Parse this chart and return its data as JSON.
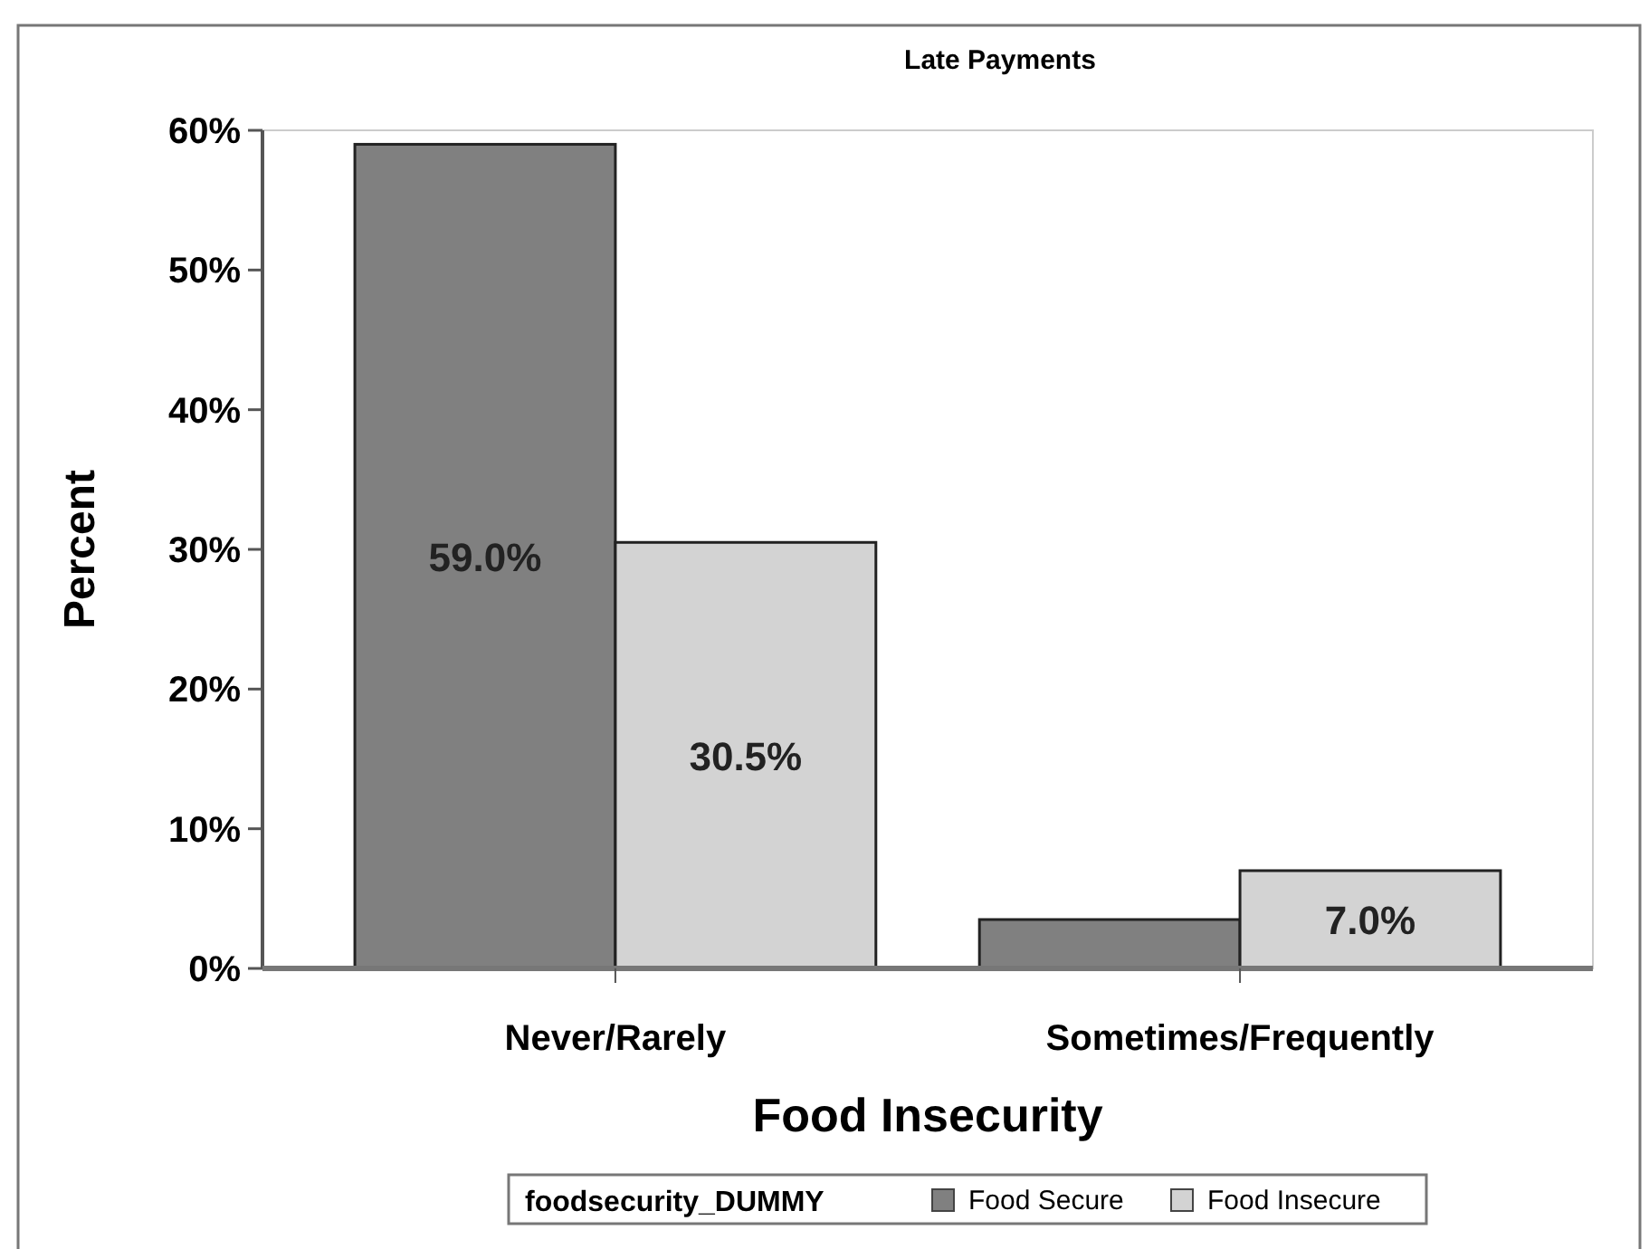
{
  "chart_data": {
    "type": "bar",
    "title": "Late Payments",
    "xlabel": "Food Insecurity",
    "ylabel": "Percent",
    "legend_title": "foodsecurity_DUMMY",
    "categories": [
      "Never/Rarely",
      "Sometimes/Frequently"
    ],
    "series": [
      {
        "name": "Food Secure",
        "color": "#808080",
        "values": [
          59.0,
          3.5
        ],
        "value_labels": [
          "59.0%",
          null
        ]
      },
      {
        "name": "Food Insecure",
        "color": "#d3d3d3",
        "values": [
          30.5,
          7.0
        ],
        "value_labels": [
          "30.5%",
          "7.0%"
        ]
      }
    ],
    "ylim": [
      0,
      60
    ],
    "yticks": [
      {
        "value": 0,
        "label": "0%"
      },
      {
        "value": 10,
        "label": "10%"
      },
      {
        "value": 20,
        "label": "20%"
      },
      {
        "value": 30,
        "label": "30%"
      },
      {
        "value": 40,
        "label": "40%"
      },
      {
        "value": 50,
        "label": "50%"
      },
      {
        "value": 60,
        "label": "60%"
      }
    ],
    "legend": "bottom",
    "grid": false
  }
}
